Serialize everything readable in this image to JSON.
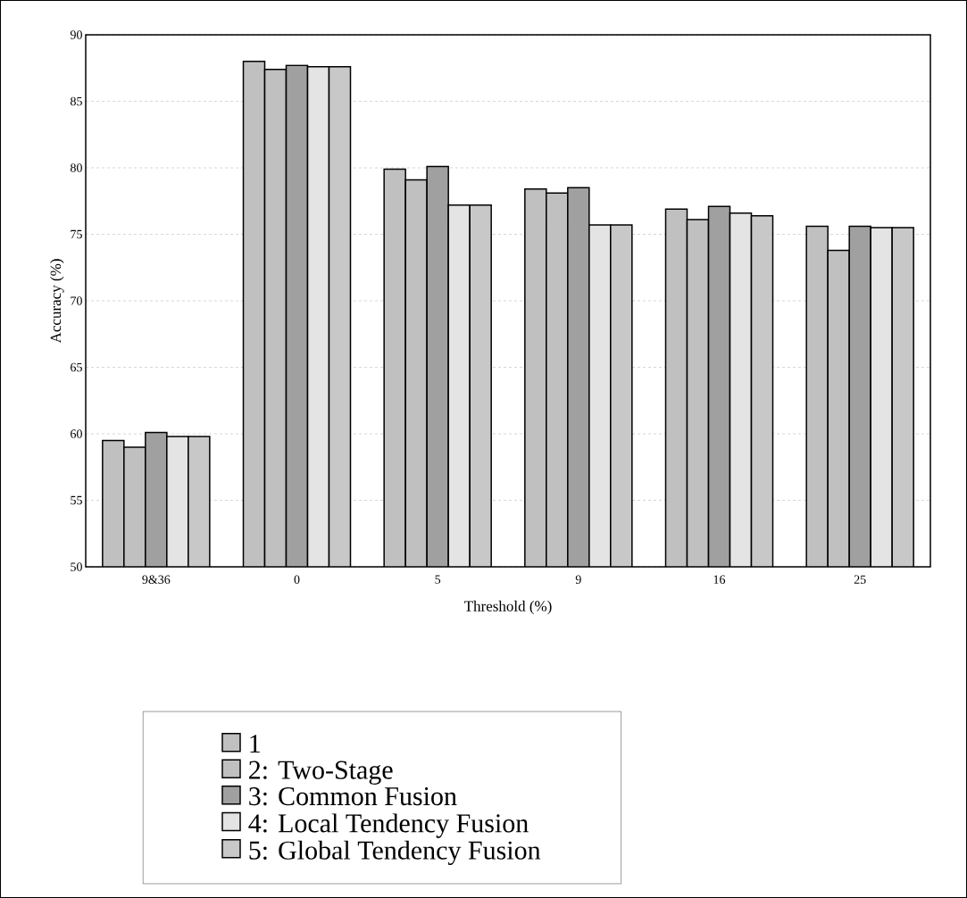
{
  "chart_data": {
    "type": "bar",
    "xlabel": "Threshold (%)",
    "ylabel": "Accuracy (%)",
    "categories": [
      "9&36",
      "0",
      "5",
      "9",
      "16",
      "25"
    ],
    "series": [
      {
        "name": "1",
        "color": "#c0c0c0",
        "values": [
          59.5,
          88.0,
          79.9,
          78.4,
          76.9,
          75.6
        ]
      },
      {
        "name": "2: Two-Stage",
        "color": "#c0c0c0",
        "values": [
          59.0,
          87.4,
          79.1,
          78.1,
          76.1,
          73.8
        ]
      },
      {
        "name": "3: Common Fusion",
        "color": "#a0a0a0",
        "values": [
          60.1,
          87.7,
          80.1,
          78.5,
          77.1,
          75.6
        ]
      },
      {
        "name": "4: Local Tendency Fusion",
        "color": "#e4e4e4",
        "values": [
          59.8,
          87.6,
          77.2,
          75.7,
          76.6,
          75.5
        ]
      },
      {
        "name": "5: Global Tendency Fusion",
        "color": "#c8c8c8",
        "values": [
          59.8,
          87.6,
          77.2,
          75.7,
          76.4,
          75.5
        ]
      }
    ],
    "ylim": [
      50,
      90
    ],
    "yticks": [
      50,
      55,
      60,
      65,
      70,
      75,
      80,
      85,
      90
    ],
    "grid": "y",
    "legend": "bottom"
  }
}
